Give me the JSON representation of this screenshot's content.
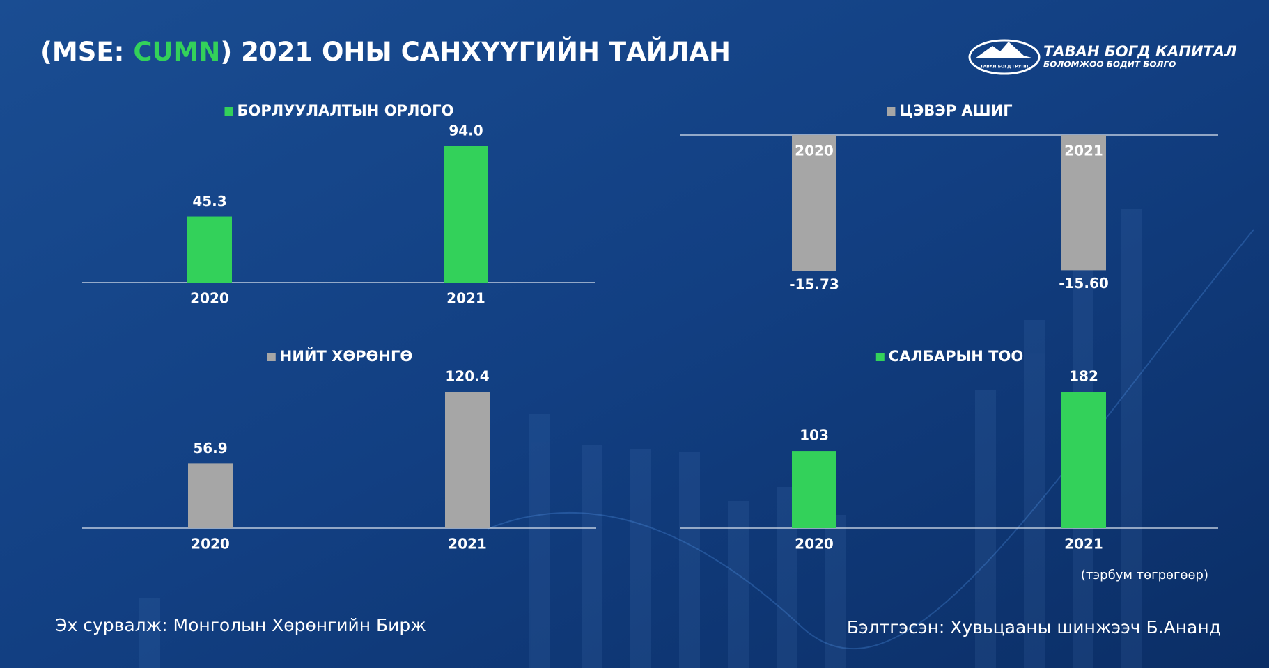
{
  "header": {
    "title_prefix": "(MSE: ",
    "ticker": "CUMN",
    "title_suffix": ") 2021 ОНЫ САНХҮҮГИЙН ТАЙЛАН"
  },
  "logo": {
    "name": "ТАВАН БОГД КАПИТАЛ",
    "slogan": "БОЛОМЖОО БОДИТ БОЛГО",
    "emblem": "ТАВАН БОГД ГРУПП"
  },
  "chart_data": [
    {
      "type": "bar",
      "title": "БОРЛУУЛАЛТЫН ОРЛОГО",
      "categories": [
        "2020",
        "2021"
      ],
      "values": [
        45.3,
        94.0
      ],
      "value_labels": [
        "45.3",
        "94.0"
      ],
      "color": "#33d15a"
    },
    {
      "type": "bar",
      "title": "ЦЭВЭР АШИГ",
      "categories": [
        "2020",
        "2021"
      ],
      "values": [
        -15.73,
        -15.6
      ],
      "value_labels": [
        "-15.73",
        "-15.60"
      ],
      "color": "#a6a6a6"
    },
    {
      "type": "bar",
      "title": "НИЙТ ХӨРӨНГӨ",
      "categories": [
        "2020",
        "2021"
      ],
      "values": [
        56.9,
        120.4
      ],
      "color": "#a6a6a6"
    },
    {
      "type": "bar",
      "title": "САЛБАРЫН ТОО",
      "categories": [
        "2020",
        "2021"
      ],
      "values": [
        103,
        182
      ],
      "color": "#33d15a"
    }
  ],
  "footer": {
    "unit_note": "(тэрбум төгрөгөөр)",
    "source": "Эх сурвалж: Монголын Хөрөнгийн Бирж",
    "author": "Бэлтгэсэн: Хувьцааны шинжээч Б.Ананд"
  }
}
